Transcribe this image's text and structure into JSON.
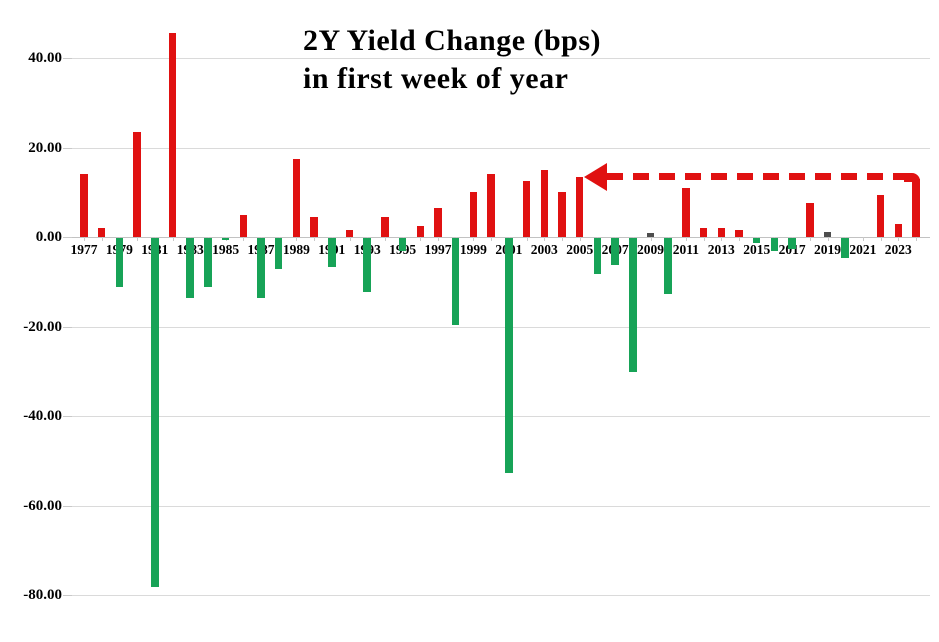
{
  "title": {
    "line1": "2Y Yield Change (bps)",
    "line2": "in first week of year"
  },
  "chart_data": {
    "type": "bar",
    "title": "2Y Yield Change (bps) in first week of year",
    "xlabel": "",
    "ylabel": "",
    "ylim": [
      -80,
      40
    ],
    "ytick_step": 20,
    "yticks": [
      {
        "value": 40,
        "label": "40.00"
      },
      {
        "value": 20,
        "label": "20.00"
      },
      {
        "value": 0,
        "label": "0.00"
      },
      {
        "value": -20,
        "label": "-20.00"
      },
      {
        "value": -40,
        "label": "-40.00"
      },
      {
        "value": -60,
        "label": "-60.00"
      },
      {
        "value": -80,
        "label": "-80.00"
      }
    ],
    "xtick_labels": [
      "1977",
      "1979",
      "1981",
      "1983",
      "1985",
      "1987",
      "1989",
      "1991",
      "1993",
      "1995",
      "1997",
      "1999",
      "2001",
      "2003",
      "2005",
      "2007",
      "2009",
      "2011",
      "2013",
      "2015",
      "2017",
      "2019",
      "2021",
      "2023"
    ],
    "grid": "horizontal",
    "legend": "none",
    "colors": {
      "positive": "#e01111",
      "negative": "#17a357",
      "near_zero": "#4d4d4d"
    },
    "series": [
      {
        "name": "2Y yield change in first week of year (bps)",
        "points": [
          {
            "year": 1977,
            "value": 14,
            "color": "positive"
          },
          {
            "year": 1978,
            "value": 2,
            "color": "positive"
          },
          {
            "year": 1979,
            "value": -11,
            "color": "negative"
          },
          {
            "year": 1980,
            "value": 23.5,
            "color": "positive"
          },
          {
            "year": 1981,
            "value": -78,
            "color": "negative"
          },
          {
            "year": 1982,
            "value": 45.5,
            "color": "positive"
          },
          {
            "year": 1983,
            "value": -13.5,
            "color": "negative"
          },
          {
            "year": 1984,
            "value": -11,
            "color": "negative"
          },
          {
            "year": 1985,
            "value": -0.5,
            "color": "negative"
          },
          {
            "year": 1986,
            "value": 5,
            "color": "positive"
          },
          {
            "year": 1987,
            "value": -13.5,
            "color": "negative"
          },
          {
            "year": 1988,
            "value": -7,
            "color": "negative"
          },
          {
            "year": 1989,
            "value": 17.5,
            "color": "positive"
          },
          {
            "year": 1990,
            "value": 4.5,
            "color": "positive"
          },
          {
            "year": 1991,
            "value": -6.5,
            "color": "negative"
          },
          {
            "year": 1992,
            "value": 1.5,
            "color": "positive"
          },
          {
            "year": 1993,
            "value": -12,
            "color": "negative"
          },
          {
            "year": 1994,
            "value": 4.5,
            "color": "positive"
          },
          {
            "year": 1995,
            "value": -3,
            "color": "negative"
          },
          {
            "year": 1996,
            "value": 2.5,
            "color": "positive"
          },
          {
            "year": 1997,
            "value": 6.5,
            "color": "positive"
          },
          {
            "year": 1998,
            "value": -19.5,
            "color": "negative"
          },
          {
            "year": 1999,
            "value": 10,
            "color": "positive"
          },
          {
            "year": 2000,
            "value": 14,
            "color": "positive"
          },
          {
            "year": 2001,
            "value": -52.5,
            "color": "negative"
          },
          {
            "year": 2002,
            "value": 12.5,
            "color": "positive"
          },
          {
            "year": 2003,
            "value": 15,
            "color": "positive"
          },
          {
            "year": 2004,
            "value": 10,
            "color": "positive"
          },
          {
            "year": 2005,
            "value": 13.5,
            "color": "positive"
          },
          {
            "year": 2006,
            "value": -8,
            "color": "negative"
          },
          {
            "year": 2007,
            "value": -6,
            "color": "negative"
          },
          {
            "year": 2008,
            "value": -30,
            "color": "negative"
          },
          {
            "year": 2009,
            "value": 0.8,
            "color": "near_zero"
          },
          {
            "year": 2010,
            "value": -12.5,
            "color": "negative"
          },
          {
            "year": 2011,
            "value": 11,
            "color": "positive"
          },
          {
            "year": 2012,
            "value": 2,
            "color": "positive"
          },
          {
            "year": 2013,
            "value": 2,
            "color": "positive"
          },
          {
            "year": 2014,
            "value": 1.5,
            "color": "positive"
          },
          {
            "year": 2015,
            "value": -1,
            "color": "negative"
          },
          {
            "year": 2016,
            "value": -3,
            "color": "negative"
          },
          {
            "year": 2017,
            "value": -2.5,
            "color": "negative"
          },
          {
            "year": 2018,
            "value": 7.5,
            "color": "positive"
          },
          {
            "year": 2019,
            "value": 1.2,
            "color": "near_zero"
          },
          {
            "year": 2020,
            "value": -4.5,
            "color": "negative"
          },
          {
            "year": 2021,
            "value": 0,
            "color": "none"
          },
          {
            "year": 2022,
            "value": 9.5,
            "color": "positive"
          },
          {
            "year": 2023,
            "value": 3,
            "color": "positive"
          },
          {
            "year": 2024,
            "value": 13,
            "color": "positive"
          }
        ]
      }
    ],
    "annotation": {
      "type": "dashed-arrow",
      "direction": "left",
      "from_year": 2024,
      "to_year": 2005,
      "level_bps": 13.5,
      "color": "#e01111"
    }
  }
}
